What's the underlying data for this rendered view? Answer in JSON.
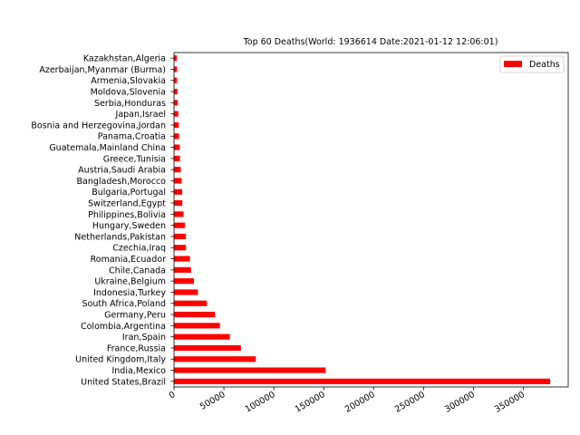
{
  "chart_data": {
    "type": "bar",
    "orientation": "horizontal",
    "title": "Top 60 Deaths(World: 1936614 Date:2021-01-12 12:06:01)",
    "xlabel": "",
    "ylabel": "",
    "xlim": [
      0,
      395000
    ],
    "xticks": [
      0,
      50000,
      100000,
      150000,
      200000,
      250000,
      300000,
      350000
    ],
    "grid": false,
    "legend": {
      "position": "top-right",
      "entries": [
        "Deaths"
      ]
    },
    "bar_color": "#ff0000",
    "categories": [
      "United States,Brazil",
      "India,Mexico",
      "United Kingdom,Italy",
      "France,Russia",
      "Iran,Spain",
      "Colombia,Argentina",
      "Germany,Peru",
      "South Africa,Poland",
      "Indonesia,Turkey",
      "Ukraine,Belgium",
      "Chile,Canada",
      "Romania,Ecuador",
      "Czechia,Iraq",
      "Netherlands,Pakistan",
      "Hungary,Sweden",
      "Philippines,Bolivia",
      "Switzerland,Egypt",
      "Bulgaria,Portugal",
      "Bangladesh,Morocco",
      "Austria,Saudi Arabia",
      "Greece,Tunisia",
      "Guatemala,Mainland China",
      "Panama,Croatia",
      "Bosnia and Herzegovina,Jordan",
      "Japan,Israel",
      "Serbia,Honduras",
      "Moldova,Slovenia",
      "Armenia,Slovakia",
      "Azerbaijan,Myanmar (Burma)",
      "Kazakhstan,Algeria"
    ],
    "series": [
      {
        "name": "Deaths",
        "values": [
          377000,
          152000,
          82000,
          67000,
          56000,
          46000,
          41000,
          33000,
          24000,
          20000,
          17000,
          16000,
          12000,
          12000,
          11000,
          9600,
          8300,
          8100,
          7700,
          6800,
          6000,
          5800,
          5000,
          4800,
          4300,
          3800,
          3400,
          3000,
          3000,
          2800
        ]
      }
    ]
  }
}
